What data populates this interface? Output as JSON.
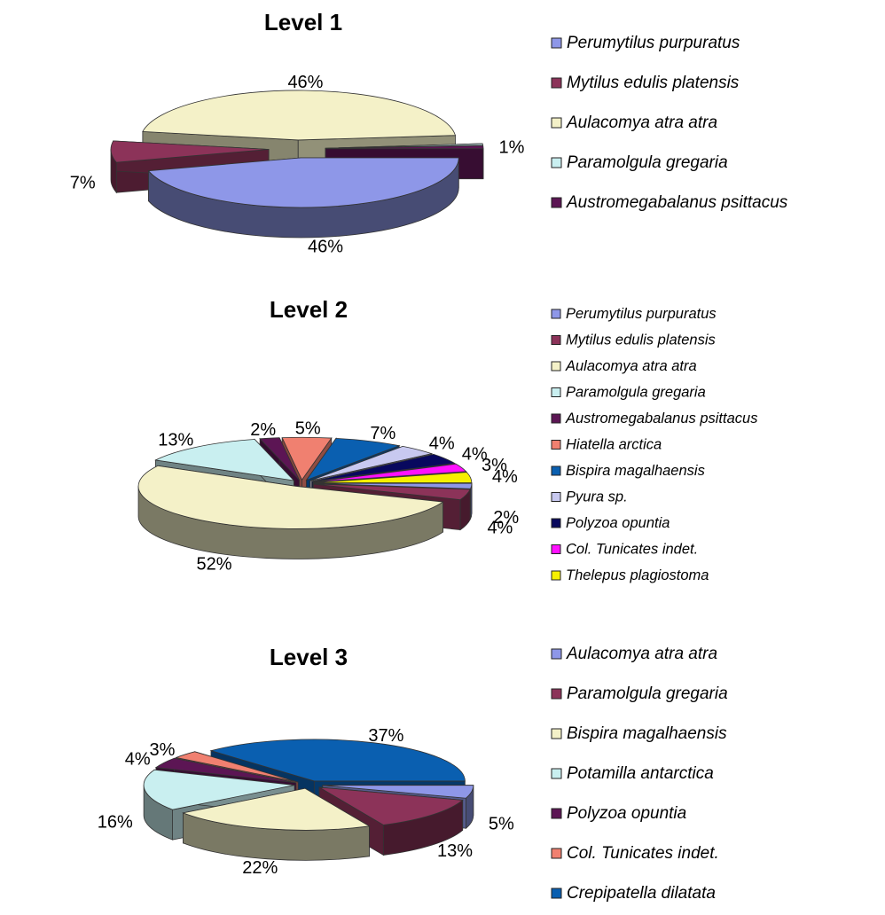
{
  "chart_data": [
    {
      "type": "pie",
      "title": "Level 1",
      "labels": [
        "Perumytilus purpuratus",
        "Mytilus edulis platensis",
        "Aulacomya atra atra",
        "Paramolgula gregaria",
        "Austromegabalanus psittacus"
      ],
      "values": [
        46,
        7,
        46,
        0.5,
        1
      ],
      "data_labels": [
        "46%",
        "7%",
        "46%",
        "",
        "1%"
      ],
      "colors": [
        "#8e97e8",
        "#8c3359",
        "#f4f1c8",
        "#c9eff0",
        "#5c1554"
      ],
      "legend_position": "right",
      "exploded": true
    },
    {
      "type": "pie",
      "title": "Level 2",
      "labels": [
        "Perumytilus purpuratus",
        "Mytilus edulis platensis",
        "Aulacomya atra atra",
        "Paramolgula gregaria",
        "Austromegabalanus psittacus",
        "Hiatella arctica",
        "Bispira magalhaensis",
        "Pyura sp.",
        "Polyzoa opuntia",
        "Col. Tunicates indet.",
        "Thelepus plagiostoma"
      ],
      "values": [
        2,
        4,
        52,
        13,
        2,
        5,
        7,
        4,
        4,
        3,
        4
      ],
      "data_labels": [
        "2%",
        "4%",
        "52%",
        "13%",
        "2%",
        "5%",
        "7%",
        "4%",
        "4%",
        "3%",
        "4%"
      ],
      "colors": [
        "#8e97e8",
        "#8c3359",
        "#f4f1c8",
        "#c9eff0",
        "#5c1554",
        "#f08070",
        "#0a5fb0",
        "#c8c9f0",
        "#08085e",
        "#ff10ff",
        "#f6f000"
      ],
      "legend_position": "right",
      "exploded": true
    },
    {
      "type": "pie",
      "title": "Level 3",
      "labels": [
        "Aulacomya atra atra",
        "Paramolgula gregaria",
        "Bispira magalhaensis",
        "Potamilla antarctica",
        "Polyzoa opuntia",
        "Col. Tunicates indet.",
        "Crepipatella dilatata"
      ],
      "values": [
        5,
        13,
        22,
        16,
        4,
        3,
        37
      ],
      "data_labels": [
        "5%",
        "13%",
        "22%",
        "16%",
        "4%",
        "3%",
        "37%"
      ],
      "colors": [
        "#8e97e8",
        "#8c3359",
        "#f4f1c8",
        "#c9eff0",
        "#5c1554",
        "#f08070",
        "#0a5fb0"
      ],
      "legend_position": "right",
      "exploded": true
    }
  ]
}
